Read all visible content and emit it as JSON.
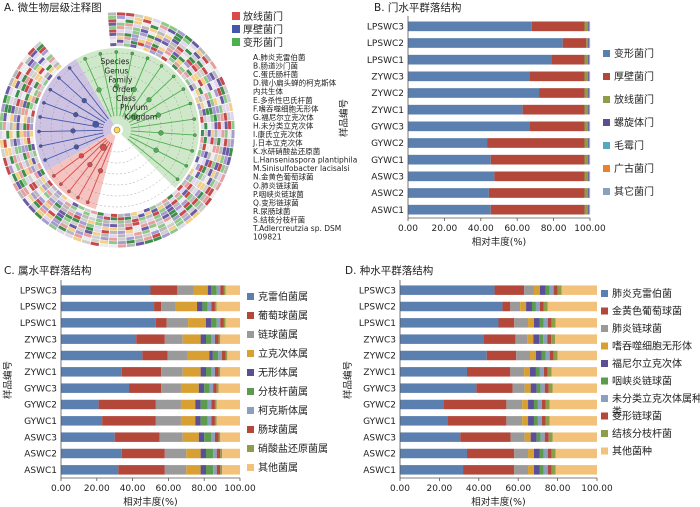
{
  "colors": {
    "blue": "#5b7fae",
    "red": "#b2473a",
    "olive": "#8d9d4a",
    "purple": "#5a4f95",
    "teal": "#56a7c2",
    "orange": "#e8822f",
    "steel": "#8ba0bf",
    "gray": "#9a9a9a",
    "gold": "#d8a032",
    "green": "#5c9a4e",
    "peach": "#f2c27a",
    "clado_purple": "#cfc3e4",
    "clado_green": "#cfe8c9",
    "clado_red": "#f5c4c0"
  },
  "panel_a": {
    "title": "A. 微生物层级注释图",
    "legend": [
      {
        "label": "放线菌门",
        "color": "#d94a4a"
      },
      {
        "label": "厚壁菌门",
        "color": "#4457a8"
      },
      {
        "label": "变形菌门",
        "color": "#4caf50"
      }
    ],
    "taxa": [
      "A.肺炎克雷伯菌",
      "B.肠道沙门菌",
      "C.蛋氏肠杆菌",
      "D.微小扁头蝉的柯克斯体",
      "内共生体",
      "E.多杀性巴氏杆菌",
      "F.嗜吞噬细胞无形体",
      "G.福尼尔立克次体",
      "H.未分类立克次体",
      "I.康氏立克次体",
      "J.日本立克次体",
      "K.水研硝酸盐还原菌",
      "L.Hanseniaspora plantiphila",
      "M.Sinisulfobacter lacisalsi",
      "N.金黄色葡萄球菌",
      "O.肺炎链球菌",
      "P.咽峡炎链球菌",
      "Q.变形链球菌",
      "R.尿肠球菌",
      "S.结核分枝杆菌",
      "T.Adlercreutzia sp. DSM",
      "109821"
    ],
    "rank_labels": [
      "Kingdom",
      "Phylum",
      "Class",
      "Order",
      "Family",
      "Genus",
      "Species"
    ]
  },
  "chart_data": [
    {
      "panel": "B",
      "type": "bar",
      "orientation": "horizontal",
      "stacked": true,
      "title": "B. 门水平群落结构",
      "xlabel": "相对丰度(%)",
      "ylabel": "样品编号",
      "xlim": [
        0,
        100
      ],
      "xticks": [
        "0.00",
        "20.00",
        "40.00",
        "60.00",
        "80.00",
        "100.00"
      ],
      "categories": [
        "LPSWC3",
        "LPSWC2",
        "LPSWC1",
        "ZYWC3",
        "ZYWC2",
        "ZYWC1",
        "GYWC3",
        "GYWC2",
        "GYWC1",
        "ASWC3",
        "ASWC2",
        "ASWC1"
      ],
      "series": [
        {
          "name": "变形菌门",
          "color": "#5b7fae",
          "values": [
            68,
            85,
            78,
            66,
            72,
            63,
            66,
            43,
            45,
            47,
            44,
            45
          ]
        },
        {
          "name": "厚壁菌门",
          "color": "#b2473a",
          "values": [
            29,
            13,
            18,
            30,
            25,
            34,
            30,
            53,
            51,
            49,
            52,
            51
          ]
        },
        {
          "name": "放线菌门",
          "color": "#8d9d4a",
          "values": [
            2,
            1,
            2,
            2,
            2,
            2,
            2,
            2,
            2,
            2,
            2,
            2
          ]
        },
        {
          "name": "螺旋体门",
          "color": "#5a4f95",
          "values": [
            0.5,
            0.5,
            0.5,
            0.5,
            0.5,
            0.5,
            0.5,
            0.5,
            0.5,
            0.5,
            0.5,
            0.5
          ]
        },
        {
          "name": "毛霉门",
          "color": "#56a7c2",
          "values": [
            0.2,
            0.2,
            0.2,
            0.2,
            0.2,
            0.2,
            0.2,
            0.2,
            0.2,
            0.2,
            0.2,
            0.2
          ]
        },
        {
          "name": "广古菌门",
          "color": "#e8822f",
          "values": [
            0.2,
            0.2,
            0.2,
            0.2,
            0.2,
            0.2,
            0.2,
            0.2,
            0.2,
            0.2,
            0.2,
            0.2
          ]
        },
        {
          "name": "其它菌门",
          "color": "#8ba0bf",
          "values": [
            0.1,
            0.1,
            0.1,
            0.1,
            0.1,
            0.1,
            0.1,
            0.1,
            0.1,
            0.1,
            0.1,
            0.1
          ]
        }
      ]
    },
    {
      "panel": "C",
      "type": "bar",
      "orientation": "horizontal",
      "stacked": true,
      "title": "C. 属水平群落结构",
      "xlabel": "相对丰度(%)",
      "ylabel": "样品编号",
      "xlim": [
        0,
        100
      ],
      "xticks": [
        "0.00",
        "20.00",
        "40.00",
        "60.00",
        "80.00",
        "100.00"
      ],
      "categories": [
        "LPSWC3",
        "LPSWC2",
        "LPSWC1",
        "ZYWC3",
        "ZYWC2",
        "ZYWC1",
        "GYWC3",
        "GYWC2",
        "GYWC1",
        "ASWC3",
        "ASWC2",
        "ASWC1"
      ],
      "series": [
        {
          "name": "克雷伯菌属",
          "color": "#5b7fae",
          "values": [
            50,
            52,
            53,
            42,
            45,
            34,
            38,
            21,
            23,
            30,
            34,
            32
          ]
        },
        {
          "name": "葡萄球菌属",
          "color": "#b2473a",
          "values": [
            15,
            4,
            6,
            16,
            14,
            22,
            18,
            32,
            30,
            25,
            24,
            26
          ]
        },
        {
          "name": "链球菌属",
          "color": "#9a9a9a",
          "values": [
            9,
            8,
            12,
            10,
            11,
            12,
            11,
            14,
            14,
            13,
            12,
            12
          ]
        },
        {
          "name": "立克次体属",
          "color": "#d8a032",
          "values": [
            8,
            12,
            10,
            10,
            12,
            10,
            10,
            8,
            8,
            9,
            8,
            8
          ]
        },
        {
          "name": "无形体属",
          "color": "#5a4f95",
          "values": [
            2,
            3,
            3,
            3,
            2,
            3,
            3,
            3,
            3,
            3,
            3,
            3
          ]
        },
        {
          "name": "分枝杆菌属",
          "color": "#5c9a4e",
          "values": [
            3,
            3,
            3,
            3,
            3,
            3,
            3,
            4,
            4,
            4,
            4,
            4
          ]
        },
        {
          "name": "柯克斯体属",
          "color": "#8ba0bf",
          "values": [
            2,
            2,
            2,
            2,
            2,
            2,
            2,
            2,
            2,
            2,
            2,
            2
          ]
        },
        {
          "name": "肠球菌属",
          "color": "#b2473a",
          "values": [
            2,
            2,
            2,
            2,
            2,
            2,
            2,
            2,
            2,
            2,
            2,
            2
          ]
        },
        {
          "name": "硝酸盐还原菌属",
          "color": "#8d9d4a",
          "values": [
            1,
            1,
            1,
            1,
            1,
            1,
            1,
            1,
            1,
            1,
            1,
            1
          ]
        },
        {
          "name": "其他菌属",
          "color": "#f2c27a",
          "values": [
            8,
            13,
            8,
            11,
            7,
            11,
            12,
            13,
            13,
            11,
            10,
            10
          ]
        }
      ]
    },
    {
      "panel": "D",
      "type": "bar",
      "orientation": "horizontal",
      "stacked": true,
      "title": "D. 种水平群落结构",
      "xlabel": "相对丰度(%)",
      "ylabel": "样品编号",
      "xlim": [
        0,
        100
      ],
      "xticks": [
        "0.00",
        "20.00",
        "40.00",
        "60.00",
        "80.00",
        "100.00"
      ],
      "categories": [
        "LPSWC3",
        "LPSWC2",
        "LPSWC1",
        "ZYWC3",
        "ZYWC2",
        "ZYWC1",
        "GYWC3",
        "GYWC2",
        "GYWC1",
        "ASWC3",
        "ASWC2",
        "ASWC1"
      ],
      "series": [
        {
          "name": "肺炎克雷伯菌",
          "color": "#5b7fae",
          "values": [
            48,
            52,
            50,
            42,
            44,
            34,
            38,
            22,
            24,
            30,
            34,
            32
          ]
        },
        {
          "name": "金黄色葡萄球菌",
          "color": "#b2473a",
          "values": [
            15,
            4,
            8,
            16,
            15,
            22,
            18,
            32,
            30,
            25,
            24,
            26
          ]
        },
        {
          "name": "肺炎链球菌",
          "color": "#9a9a9a",
          "values": [
            5,
            5,
            7,
            6,
            7,
            7,
            6,
            8,
            8,
            7,
            7,
            7
          ]
        },
        {
          "name": "嗜吞噬细胞无形体",
          "color": "#d8a032",
          "values": [
            3,
            3,
            3,
            3,
            3,
            3,
            3,
            3,
            3,
            3,
            3,
            3
          ]
        },
        {
          "name": "福尼尔立克次体",
          "color": "#5a4f95",
          "values": [
            3,
            3,
            3,
            3,
            3,
            3,
            3,
            3,
            3,
            3,
            3,
            3
          ]
        },
        {
          "name": "咽峡炎链球菌",
          "color": "#5c9a4e",
          "values": [
            2,
            2,
            2,
            2,
            2,
            2,
            2,
            2,
            2,
            2,
            2,
            2
          ]
        },
        {
          "name": "未分类立克次体属种类",
          "color": "#8ba0bf",
          "values": [
            2,
            2,
            2,
            2,
            2,
            2,
            2,
            2,
            2,
            2,
            2,
            2
          ]
        },
        {
          "name": "变形链球菌",
          "color": "#b2473a",
          "values": [
            2,
            2,
            2,
            2,
            2,
            2,
            2,
            2,
            2,
            2,
            2,
            2
          ]
        },
        {
          "name": "结核分枝杆菌",
          "color": "#8d9d4a",
          "values": [
            2,
            2,
            2,
            2,
            2,
            2,
            2,
            2,
            2,
            2,
            2,
            2
          ]
        },
        {
          "name": "其他菌种",
          "color": "#f2c27a",
          "values": [
            18,
            25,
            21,
            21,
            20,
            23,
            22,
            24,
            24,
            22,
            21,
            21
          ]
        }
      ]
    }
  ]
}
